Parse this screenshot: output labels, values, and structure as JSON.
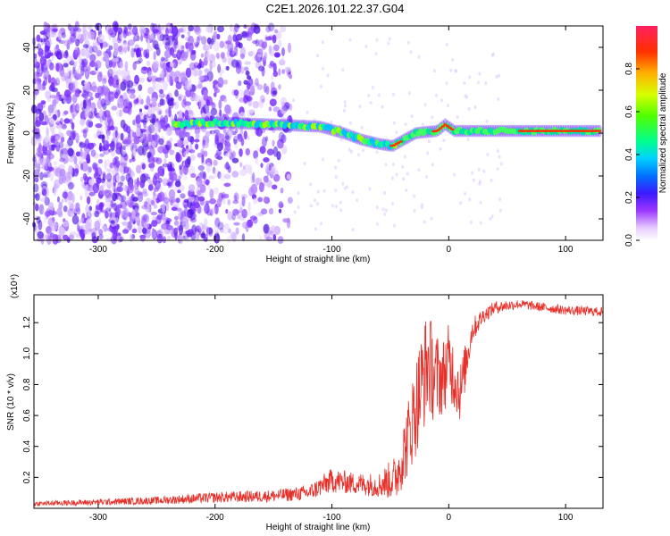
{
  "chart_data": [
    {
      "type": "heatmap",
      "title": "C2E1.2026.101.22.37.G04",
      "xlabel": "Height of straight line (km)",
      "ylabel": "Frequency (Hz)",
      "xlim": [
        -355,
        132
      ],
      "ylim": [
        -50,
        50
      ],
      "xticks": [
        -300,
        -200,
        -100,
        0,
        100
      ],
      "yticks": [
        -40,
        -20,
        0,
        20,
        40
      ],
      "colorbar": {
        "label": "Normalized spectral amplitude",
        "range": [
          0,
          1
        ],
        "ticks": [
          "0.0",
          "0.2",
          "0.4",
          "0.6",
          "0.8"
        ],
        "tick_values": [
          0.0,
          0.2,
          0.4,
          0.6,
          0.8
        ]
      },
      "ridge": [
        {
          "x": -235,
          "y": 4
        },
        {
          "x": -200,
          "y": 5
        },
        {
          "x": -150,
          "y": 4
        },
        {
          "x": -110,
          "y": 3
        },
        {
          "x": -90,
          "y": 0
        },
        {
          "x": -75,
          "y": -3
        },
        {
          "x": -60,
          "y": -5
        },
        {
          "x": -48,
          "y": -6
        },
        {
          "x": -38,
          "y": -3
        },
        {
          "x": -28,
          "y": 0
        },
        {
          "x": -10,
          "y": 1
        },
        {
          "x": -3,
          "y": 4
        },
        {
          "x": 5,
          "y": 1
        },
        {
          "x": 40,
          "y": 1
        },
        {
          "x": 80,
          "y": 1
        },
        {
          "x": 130,
          "y": 1
        }
      ]
    },
    {
      "type": "line",
      "xlabel": "Height of straight line (km)",
      "ylabel": "SNR (10 * v/v)",
      "y_multiplier": "(x10⁴)",
      "xlim": [
        -355,
        132
      ],
      "ylim": [
        0,
        1.38
      ],
      "xticks": [
        -300,
        -200,
        -100,
        0,
        100
      ],
      "yticks": [
        0.2,
        0.4,
        0.6,
        0.8,
        1.0,
        1.2
      ],
      "ytick_labels": [
        "0.2",
        "0.4",
        "0.6",
        "0.8",
        "1.0",
        "1.2"
      ],
      "series": [
        {
          "name": "SNR",
          "color": "#e8302a",
          "x": [
            -355,
            -300,
            -250,
            -200,
            -150,
            -120,
            -100,
            -80,
            -60,
            -45,
            -35,
            -25,
            -18,
            -12,
            -5,
            0,
            10,
            20,
            30,
            40,
            60,
            80,
            100,
            132
          ],
          "y": [
            0.03,
            0.04,
            0.05,
            0.07,
            0.08,
            0.1,
            0.18,
            0.16,
            0.15,
            0.2,
            0.45,
            0.75,
            0.95,
            0.85,
            0.85,
            0.95,
            0.75,
            1.15,
            1.25,
            1.3,
            1.32,
            1.3,
            1.28,
            1.27
          ],
          "noise": [
            0.015,
            0.02,
            0.025,
            0.035,
            0.04,
            0.05,
            0.08,
            0.07,
            0.08,
            0.15,
            0.25,
            0.35,
            0.35,
            0.3,
            0.25,
            0.25,
            0.2,
            0.08,
            0.05,
            0.04,
            0.03,
            0.03,
            0.03,
            0.03
          ]
        }
      ]
    }
  ]
}
